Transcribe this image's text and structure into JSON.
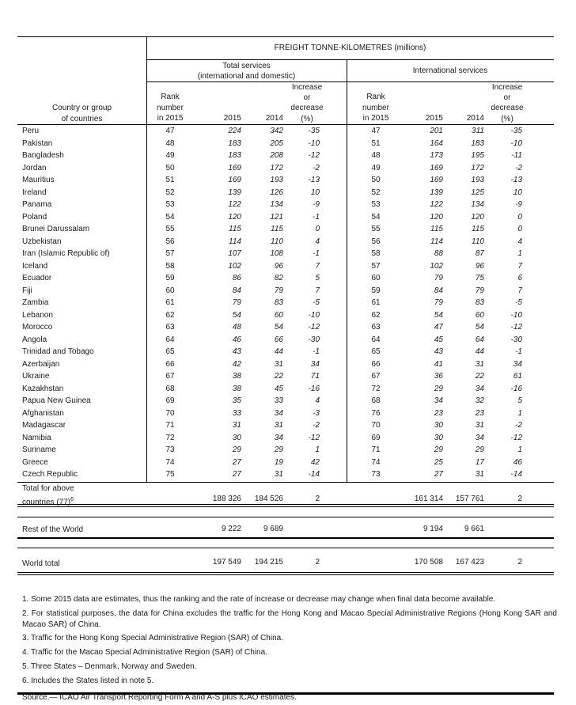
{
  "table": {
    "title": "FREIGHT TONNE-KILOMETRES (millions)",
    "col_groups": {
      "total_line1": "Total services",
      "total_line2": "(international and domestic)",
      "international": "International services"
    },
    "country_header": {
      "line1": "Country or group",
      "line2": "of countries"
    },
    "sub_headers": {
      "rank1": "Rank",
      "rank2": "number",
      "rank3": "in 2015",
      "y2015": "2015",
      "y2014": "2014",
      "pct1": "Increase",
      "pct2": "or",
      "pct3": "decrease",
      "pct4": "(%)"
    },
    "rows": [
      [
        "Peru",
        "47",
        "224",
        "342",
        "-35",
        "47",
        "201",
        "311",
        "-35"
      ],
      [
        "Pakistan",
        "48",
        "183",
        "205",
        "-10",
        "51",
        "164",
        "183",
        "-10"
      ],
      [
        "Bangladesh",
        "49",
        "183",
        "208",
        "-12",
        "48",
        "173",
        "195",
        "-11"
      ],
      [
        "Jordan",
        "50",
        "169",
        "172",
        "-2",
        "49",
        "169",
        "172",
        "-2"
      ],
      [
        "Mauritius",
        "51",
        "169",
        "193",
        "-13",
        "50",
        "169",
        "193",
        "-13"
      ],
      [
        "Ireland",
        "52",
        "139",
        "126",
        "10",
        "52",
        "139",
        "125",
        "10"
      ],
      [
        "Panama",
        "53",
        "122",
        "134",
        "-9",
        "53",
        "122",
        "134",
        "-9"
      ],
      [
        "Poland",
        "54",
        "120",
        "121",
        "-1",
        "54",
        "120",
        "120",
        "0"
      ],
      [
        "Brunei Darussalam",
        "55",
        "115",
        "115",
        "0",
        "55",
        "115",
        "115",
        "0"
      ],
      [
        "Uzbekistan",
        "56",
        "114",
        "110",
        "4",
        "56",
        "114",
        "110",
        "4"
      ],
      [
        "Iran (Islamic Republic of)",
        "57",
        "107",
        "108",
        "-1",
        "58",
        "88",
        "87",
        "1"
      ],
      [
        "Iceland",
        "58",
        "102",
        "96",
        "7",
        "57",
        "102",
        "96",
        "7"
      ],
      [
        "Ecuador",
        "59",
        "86",
        "82",
        "5",
        "60",
        "79",
        "75",
        "6"
      ],
      [
        "Fiji",
        "60",
        "84",
        "79",
        "7",
        "59",
        "84",
        "79",
        "7"
      ],
      [
        "Zambia",
        "61",
        "79",
        "83",
        "-5",
        "61",
        "79",
        "83",
        "-5"
      ],
      [
        "Lebanon",
        "62",
        "54",
        "60",
        "-10",
        "62",
        "54",
        "60",
        "-10"
      ],
      [
        "Morocco",
        "63",
        "48",
        "54",
        "-12",
        "63",
        "47",
        "54",
        "-12"
      ],
      [
        "Angola",
        "64",
        "46",
        "66",
        "-30",
        "64",
        "45",
        "64",
        "-30"
      ],
      [
        "Trinidad and Tobago",
        "65",
        "43",
        "44",
        "-1",
        "65",
        "43",
        "44",
        "-1"
      ],
      [
        "Azerbaijan",
        "66",
        "42",
        "31",
        "34",
        "66",
        "41",
        "31",
        "34"
      ],
      [
        "Ukraine",
        "67",
        "38",
        "22",
        "71",
        "67",
        "36",
        "22",
        "61"
      ],
      [
        "Kazakhstan",
        "68",
        "38",
        "45",
        "-16",
        "72",
        "29",
        "34",
        "-16"
      ],
      [
        "Papua New Guinea",
        "69",
        "35",
        "33",
        "4",
        "68",
        "34",
        "32",
        "5"
      ],
      [
        "Afghanistan",
        "70",
        "33",
        "34",
        "-3",
        "76",
        "23",
        "23",
        "1"
      ],
      [
        "Madagascar",
        "71",
        "31",
        "31",
        "-2",
        "70",
        "30",
        "31",
        "-2"
      ],
      [
        "Namibia",
        "72",
        "30",
        "34",
        "-12",
        "69",
        "30",
        "34",
        "-12"
      ],
      [
        "Suriname",
        "73",
        "29",
        "29",
        "1",
        "71",
        "29",
        "29",
        "1"
      ],
      [
        "Greece",
        "74",
        "27",
        "19",
        "42",
        "74",
        "25",
        "17",
        "46"
      ],
      [
        "Czech Republic",
        "75",
        "27",
        "31",
        "-14",
        "73",
        "27",
        "31",
        "-14"
      ]
    ]
  },
  "totals": [
    {
      "line1": "Total for above",
      "line2": "countries (77)",
      "sup": "6",
      "values": [
        "188 326",
        "184 526",
        "2",
        "161 314",
        "157 761",
        "2"
      ]
    },
    {
      "line1": "Rest of the World",
      "values": [
        "9 222",
        "9 689",
        "",
        "9 194",
        "9 661",
        ""
      ]
    },
    {
      "line1": "World total",
      "values": [
        "197 549",
        "194 215",
        "2",
        "170 508",
        "167 423",
        "2"
      ]
    }
  ],
  "footnotes": [
    "1. Some 2015 data are estimates, thus the ranking and the rate of increase or decrease may change when final data become available.",
    "2. For statistical purposes, the data for China excludes the traffic for the Hong Kong and Macao Special Administrative Regions (Hong Kong SAR and Macao SAR) of China.",
    "3. Traffic for the Hong Kong Special Administrative Region (SAR) of China.",
    "4. Traffic for the Macao Special Administrative Region (SAR) of China.",
    "5. Three States – Denmark, Norway and Sweden.",
    "6. Includes the States listed in note 5."
  ],
  "source": "Source.—  ICAO Air Transport Reporting Form A and A-S plus ICAO estimates."
}
